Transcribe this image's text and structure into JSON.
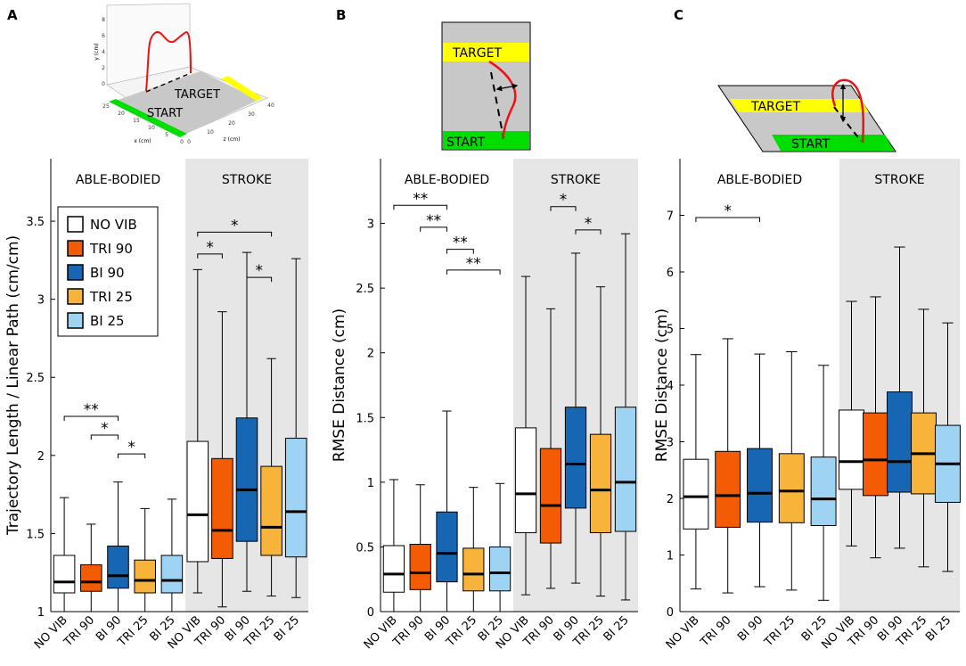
{
  "colors": {
    "no_vib": "#ffffff",
    "tri_90": "#f35b04",
    "bi_90": "#1666b4",
    "tri_25": "#f8b33a",
    "bi_25": "#9fd3f3",
    "stroke_bg": "#e6e6e6",
    "target_band": "#ffff00",
    "start_band": "#00dd00",
    "trajectory": "#ee1111"
  },
  "legend": {
    "entries": [
      "NO VIB",
      "TRI 90",
      "BI 90",
      "TRI 25",
      "BI 25"
    ]
  },
  "illustrations": {
    "a": {
      "target": "TARGET",
      "start": "START",
      "y_axis_label": "y (cm)",
      "x_axis_label": "x (cm)",
      "z_axis_label": "z (cm)",
      "y_ticks": [
        "0",
        "2",
        "4",
        "6",
        "8"
      ],
      "x_ticks": [
        "25",
        "20",
        "15",
        "10",
        "5",
        "0"
      ],
      "z_ticks": [
        "0",
        "10",
        "20",
        "30",
        "40"
      ]
    },
    "b": {
      "target": "TARGET",
      "start": "START"
    },
    "c": {
      "target": "TARGET",
      "start": "START"
    }
  },
  "chart_data": [
    {
      "panel": "A",
      "type": "box",
      "ylabel": "Trajectory Length / Linear Path (cm/cm)",
      "ylim": [
        1,
        3.9
      ],
      "yticks": [
        1,
        1.5,
        2,
        2.5,
        3,
        3.5
      ],
      "ytick_labels": [
        "1",
        "1.5",
        "2",
        "2.5",
        "3",
        "3.5"
      ],
      "groups": [
        {
          "name": "ABLE-BODIED",
          "shaded": false,
          "boxes": [
            {
              "label": "NO VIB",
              "whisker_low": 1.0,
              "q1": 1.12,
              "median": 1.19,
              "q3": 1.36,
              "whisker_high": 1.73
            },
            {
              "label": "TRI 90",
              "whisker_low": 1.0,
              "q1": 1.13,
              "median": 1.19,
              "q3": 1.3,
              "whisker_high": 1.56
            },
            {
              "label": "BI 90",
              "whisker_low": 1.0,
              "q1": 1.15,
              "median": 1.23,
              "q3": 1.42,
              "whisker_high": 1.83
            },
            {
              "label": "TRI 25",
              "whisker_low": 1.0,
              "q1": 1.12,
              "median": 1.2,
              "q3": 1.33,
              "whisker_high": 1.66
            },
            {
              "label": "BI 25",
              "whisker_low": 1.0,
              "q1": 1.12,
              "median": 1.2,
              "q3": 1.36,
              "whisker_high": 1.72
            }
          ],
          "brackets": [
            {
              "from": 0,
              "to": 2,
              "value": 2.25,
              "label": "**"
            },
            {
              "from": 1,
              "to": 2,
              "value": 2.13,
              "label": "*"
            },
            {
              "from": 2,
              "to": 3,
              "value": 2.01,
              "label": "*"
            }
          ]
        },
        {
          "name": "STROKE",
          "shaded": true,
          "boxes": [
            {
              "label": "NO VIB",
              "whisker_low": 1.12,
              "q1": 1.32,
              "median": 1.62,
              "q3": 2.09,
              "whisker_high": 3.19
            },
            {
              "label": "TRI 90",
              "whisker_low": 1.03,
              "q1": 1.34,
              "median": 1.52,
              "q3": 1.98,
              "whisker_high": 2.92
            },
            {
              "label": "BI 90",
              "whisker_low": 1.13,
              "q1": 1.45,
              "median": 1.78,
              "q3": 2.24,
              "whisker_high": 3.3
            },
            {
              "label": "TRI 25",
              "whisker_low": 1.1,
              "q1": 1.36,
              "median": 1.54,
              "q3": 1.93,
              "whisker_high": 2.62
            },
            {
              "label": "BI 25",
              "whisker_low": 1.09,
              "q1": 1.35,
              "median": 1.64,
              "q3": 2.11,
              "whisker_high": 3.26
            }
          ],
          "brackets": [
            {
              "from": 0,
              "to": 3,
              "value": 3.43,
              "label": "*"
            },
            {
              "from": 0,
              "to": 1,
              "value": 3.29,
              "label": "*"
            },
            {
              "from": 2,
              "to": 3,
              "value": 3.14,
              "label": "*"
            }
          ]
        }
      ]
    },
    {
      "panel": "B",
      "type": "box",
      "ylabel": "RMSE Distance (cm)",
      "ylim": [
        0,
        3.5
      ],
      "yticks": [
        0,
        0.5,
        1,
        1.5,
        2,
        2.5,
        3
      ],
      "ytick_labels": [
        "0",
        "0.5",
        "1",
        "1.5",
        "2",
        "2.5",
        "3"
      ],
      "groups": [
        {
          "name": "ABLE-BODIED",
          "shaded": false,
          "boxes": [
            {
              "label": "NO VIB",
              "whisker_low": 0.0,
              "q1": 0.15,
              "median": 0.29,
              "q3": 0.51,
              "whisker_high": 1.02
            },
            {
              "label": "TRI 90",
              "whisker_low": 0.0,
              "q1": 0.17,
              "median": 0.3,
              "q3": 0.52,
              "whisker_high": 0.98
            },
            {
              "label": "BI 90",
              "whisker_low": 0.0,
              "q1": 0.23,
              "median": 0.45,
              "q3": 0.77,
              "whisker_high": 1.55
            },
            {
              "label": "TRI 25",
              "whisker_low": 0.0,
              "q1": 0.16,
              "median": 0.29,
              "q3": 0.49,
              "whisker_high": 0.96
            },
            {
              "label": "BI 25",
              "whisker_low": 0.0,
              "q1": 0.16,
              "median": 0.3,
              "q3": 0.5,
              "whisker_high": 0.99
            }
          ],
          "brackets": [
            {
              "from": 0,
              "to": 2,
              "value": 3.14,
              "label": "**"
            },
            {
              "from": 1,
              "to": 2,
              "value": 2.97,
              "label": "**"
            },
            {
              "from": 2,
              "to": 3,
              "value": 2.8,
              "label": "**"
            },
            {
              "from": 2,
              "to": 4,
              "value": 2.64,
              "label": "**"
            }
          ]
        },
        {
          "name": "STROKE",
          "shaded": true,
          "boxes": [
            {
              "label": "NO VIB",
              "whisker_low": 0.13,
              "q1": 0.61,
              "median": 0.91,
              "q3": 1.42,
              "whisker_high": 2.59
            },
            {
              "label": "TRI 90",
              "whisker_low": 0.18,
              "q1": 0.53,
              "median": 0.82,
              "q3": 1.26,
              "whisker_high": 2.34
            },
            {
              "label": "BI 90",
              "whisker_low": 0.22,
              "q1": 0.8,
              "median": 1.14,
              "q3": 1.58,
              "whisker_high": 2.77
            },
            {
              "label": "TRI 25",
              "whisker_low": 0.12,
              "q1": 0.61,
              "median": 0.94,
              "q3": 1.37,
              "whisker_high": 2.51
            },
            {
              "label": "BI 25",
              "whisker_low": 0.09,
              "q1": 0.62,
              "median": 1.0,
              "q3": 1.58,
              "whisker_high": 2.92
            }
          ],
          "brackets": [
            {
              "from": 1,
              "to": 2,
              "value": 3.13,
              "label": "*"
            },
            {
              "from": 2,
              "to": 3,
              "value": 2.95,
              "label": "*"
            }
          ]
        }
      ]
    },
    {
      "panel": "C",
      "type": "box",
      "ylabel": "RMSE Distance (cm)",
      "ylim": [
        0,
        8
      ],
      "yticks": [
        0,
        1,
        2,
        3,
        4,
        5,
        6,
        7
      ],
      "ytick_labels": [
        "0",
        "1",
        "2",
        "3",
        "4",
        "5",
        "6",
        "7"
      ],
      "groups": [
        {
          "name": "ABLE-BODIED",
          "shaded": false,
          "boxes": [
            {
              "label": "NO VIB",
              "whisker_low": 0.4,
              "q1": 1.46,
              "median": 2.03,
              "q3": 2.69,
              "whisker_high": 4.54
            },
            {
              "label": "TRI 90",
              "whisker_low": 0.33,
              "q1": 1.49,
              "median": 2.05,
              "q3": 2.83,
              "whisker_high": 4.82
            },
            {
              "label": "BI 90",
              "whisker_low": 0.44,
              "q1": 1.58,
              "median": 2.09,
              "q3": 2.88,
              "whisker_high": 4.55
            },
            {
              "label": "TRI 25",
              "whisker_low": 0.38,
              "q1": 1.57,
              "median": 2.13,
              "q3": 2.79,
              "whisker_high": 4.59
            },
            {
              "label": "BI 25",
              "whisker_low": 0.2,
              "q1": 1.52,
              "median": 1.99,
              "q3": 2.73,
              "whisker_high": 4.35
            }
          ],
          "brackets": [
            {
              "from": 0,
              "to": 2,
              "value": 6.96,
              "label": "*"
            }
          ]
        },
        {
          "name": "STROKE",
          "shaded": true,
          "boxes": [
            {
              "label": "NO VIB",
              "whisker_low": 1.16,
              "q1": 2.16,
              "median": 2.65,
              "q3": 3.56,
              "whisker_high": 5.48
            },
            {
              "label": "TRI 90",
              "whisker_low": 0.95,
              "q1": 2.05,
              "median": 2.68,
              "q3": 3.51,
              "whisker_high": 5.56
            },
            {
              "label": "BI 90",
              "whisker_low": 1.12,
              "q1": 2.11,
              "median": 2.65,
              "q3": 3.88,
              "whisker_high": 6.44
            },
            {
              "label": "TRI 25",
              "whisker_low": 0.79,
              "q1": 2.08,
              "median": 2.79,
              "q3": 3.51,
              "whisker_high": 5.34
            },
            {
              "label": "BI 25",
              "whisker_low": 0.71,
              "q1": 1.93,
              "median": 2.61,
              "q3": 3.29,
              "whisker_high": 5.1
            }
          ],
          "brackets": []
        }
      ]
    }
  ]
}
